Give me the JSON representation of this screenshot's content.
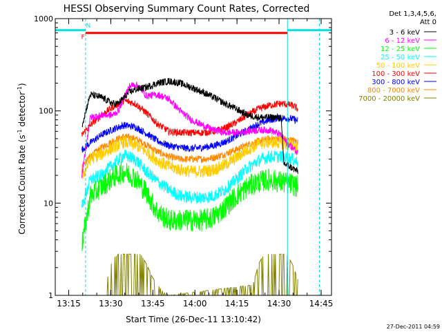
{
  "chart_data": {
    "type": "line",
    "title": "HESSI Observing Summary Count Rates, Corrected",
    "xlabel": "Start Time (26-Dec-11 13:10:42)",
    "ylabel_main": "Corrected Count Rate (s",
    "ylabel_sup1": "-1",
    "ylabel_mid": " detector",
    "ylabel_sup2": "-1",
    "ylabel_end": ")",
    "y_scale": "log",
    "ylim": [
      1,
      1000
    ],
    "xlim": [
      -0.5,
      98
    ],
    "x_ticks": [
      {
        "t": 4.3,
        "label": "13:15"
      },
      {
        "t": 19.3,
        "label": "13:30"
      },
      {
        "t": 34.3,
        "label": "13:45"
      },
      {
        "t": 49.3,
        "label": "14:00"
      },
      {
        "t": 64.3,
        "label": "14:15"
      },
      {
        "t": 79.3,
        "label": "14:30"
      },
      {
        "t": 94.3,
        "label": "14:45"
      }
    ],
    "y_ticks": [
      {
        "v": 1,
        "label": "1"
      },
      {
        "v": 10,
        "label": "10"
      },
      {
        "v": 100,
        "label": "100"
      },
      {
        "v": 1000,
        "label": "1000"
      }
    ],
    "legend_header": [
      "Det 1,3,4,5,6,",
      "Att 0"
    ],
    "legend_position": "right",
    "series": [
      {
        "name": "3 - 6 keV",
        "color": "#000000",
        "x": [
          9,
          12,
          16,
          20,
          22,
          24,
          26,
          28,
          32,
          36,
          40,
          44,
          48,
          52,
          56,
          60,
          64,
          68,
          72,
          76,
          80,
          81,
          82,
          84,
          86
        ],
        "y": [
          70,
          150,
          140,
          120,
          120,
          140,
          160,
          170,
          180,
          200,
          210,
          200,
          180,
          160,
          140,
          120,
          105,
          90,
          85,
          85,
          85,
          27,
          26,
          24,
          22
        ]
      },
      {
        "name": "6 - 12 keV",
        "color": "#ff00ff",
        "x": [
          9,
          12,
          16,
          20,
          22,
          24,
          26,
          28,
          30,
          32,
          36,
          40,
          44,
          48,
          52,
          56,
          60,
          64,
          68,
          72,
          76,
          80,
          82,
          84,
          86
        ],
        "y": [
          20,
          85,
          90,
          90,
          100,
          140,
          185,
          195,
          175,
          145,
          150,
          135,
          100,
          80,
          70,
          62,
          58,
          58,
          60,
          62,
          62,
          55,
          45,
          40,
          35
        ]
      },
      {
        "name": "12 - 25 keV",
        "color": "#00ff00",
        "x": [
          9,
          12,
          16,
          20,
          24,
          28,
          32,
          36,
          40,
          44,
          48,
          52,
          56,
          60,
          64,
          68,
          72,
          76,
          80,
          84,
          86
        ],
        "y": [
          3.5,
          12,
          15,
          19,
          22,
          19,
          13,
          8,
          6.5,
          6.5,
          6.5,
          6.5,
          7,
          9,
          12,
          15,
          17,
          18,
          17,
          16,
          15
        ]
      },
      {
        "name": "25 - 50 keV",
        "color": "#00ffff",
        "x": [
          9,
          12,
          16,
          20,
          24,
          28,
          32,
          36,
          40,
          44,
          48,
          52,
          56,
          60,
          64,
          68,
          72,
          76,
          80,
          84,
          86
        ],
        "y": [
          9,
          18,
          20,
          26,
          33,
          30,
          22,
          17,
          14,
          12,
          11.5,
          11.5,
          12,
          14,
          18,
          24,
          29,
          32,
          32,
          30,
          28
        ]
      },
      {
        "name": "50 - 100 keV",
        "color": "#ffcc00",
        "x": [
          9,
          12,
          16,
          20,
          24,
          28,
          32,
          36,
          40,
          44,
          48,
          52,
          56,
          60,
          64,
          68,
          72,
          76,
          80,
          84,
          86
        ],
        "y": [
          19,
          30,
          34,
          40,
          46,
          43,
          36,
          29,
          25,
          23,
          22,
          22,
          23,
          26,
          31,
          38,
          44,
          46,
          45,
          42,
          40
        ]
      },
      {
        "name": "100 - 300 keV",
        "color": "#ff0000",
        "x": [
          9,
          12,
          16,
          20,
          24,
          28,
          32,
          36,
          40,
          44,
          48,
          52,
          56,
          60,
          64,
          68,
          72,
          76,
          80,
          84,
          86
        ],
        "y": [
          55,
          70,
          90,
          110,
          130,
          120,
          95,
          72,
          60,
          58,
          58,
          58,
          60,
          65,
          75,
          90,
          105,
          115,
          120,
          115,
          105
        ]
      },
      {
        "name": "300 - 800 keV",
        "color": "#0000ff",
        "x": [
          9,
          12,
          16,
          20,
          24,
          28,
          32,
          36,
          40,
          44,
          48,
          52,
          56,
          60,
          64,
          68,
          72,
          76,
          80,
          84,
          86
        ],
        "y": [
          38,
          45,
          55,
          63,
          70,
          67,
          57,
          47,
          42,
          40,
          39,
          40,
          42,
          46,
          53,
          62,
          72,
          80,
          84,
          82,
          78
        ]
      },
      {
        "name": "800 - 7000 keV",
        "color": "#ff8800",
        "x": [
          9,
          12,
          16,
          20,
          24,
          28,
          32,
          36,
          40,
          44,
          48,
          52,
          56,
          60,
          64,
          68,
          72,
          76,
          80,
          84,
          86
        ],
        "y": [
          25,
          32,
          40,
          47,
          53,
          50,
          43,
          36,
          32,
          30,
          30,
          30,
          31,
          34,
          38,
          43,
          47,
          50,
          50,
          48,
          46
        ]
      },
      {
        "name": "7000 - 20000 keV",
        "color": "#808000",
        "x": [
          18,
          20,
          22,
          24,
          26,
          28,
          30,
          32,
          34,
          36,
          38,
          40,
          70,
          72,
          74,
          76,
          78,
          80,
          82,
          84,
          86
        ],
        "y": [
          1.5,
          2.5,
          2.8,
          2.8,
          2.8,
          2.8,
          2.8,
          2.2,
          1.6,
          1.3,
          1.1,
          1,
          1.3,
          2.2,
          2.8,
          2.8,
          2.8,
          2.8,
          2.8,
          2.2,
          1.5
        ]
      }
    ],
    "attenuator_bars": [
      {
        "t0": -0.5,
        "t1": 10.3,
        "v": 750,
        "color": "#00e0e0"
      },
      {
        "t0": 10.3,
        "t1": 82.3,
        "v": 700,
        "color": "#ff0000"
      },
      {
        "t0": 82.3,
        "t1": 98,
        "v": 750,
        "color": "#00e0e0"
      }
    ],
    "vlines": [
      {
        "t": -0.5,
        "color": "#00e0e0",
        "dash": false
      },
      {
        "t": 10.3,
        "color": "#00e0e0",
        "dash": true
      },
      {
        "t": 82.3,
        "color": "#00e0e0",
        "dash": false
      },
      {
        "t": 93.7,
        "color": "#00e0e0",
        "dash": true
      }
    ],
    "annotations": [
      {
        "text": "N",
        "t": 11.3,
        "v": 800,
        "color": "#00e0e0"
      },
      {
        "text": "F",
        "t": 9.4,
        "v": 600,
        "color": "#ff0000"
      }
    ]
  },
  "footer_timestamp": "27-Dec-2011 04:59"
}
